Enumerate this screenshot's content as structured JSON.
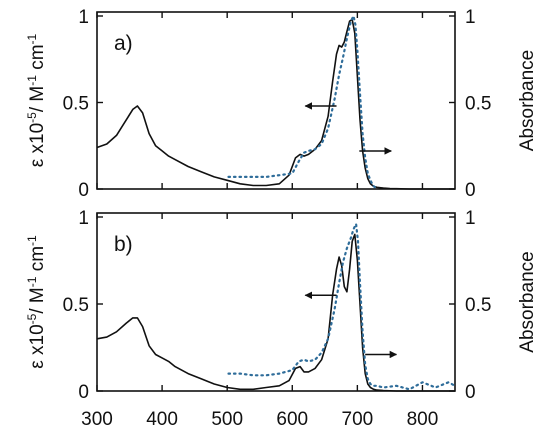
{
  "chart_data": [
    {
      "type": "line",
      "panel_label": "a)",
      "xlim": [
        300,
        850
      ],
      "left_ylim": [
        0,
        1.0
      ],
      "right_ylim": [
        0,
        1.0
      ],
      "left_ylabel": "ε x10-5/ M-1 cm-1",
      "left_ylabel_parts": {
        "base": "ε x10",
        "sup1": "-5",
        "mid": "/ M",
        "sup2": "-1",
        "end": " cm",
        "sup3": "-1"
      },
      "right_ylabel": "Absorbance",
      "left_yticks": [
        "0",
        "0.5",
        "1"
      ],
      "right_yticks": [
        "0",
        "0.5",
        "1"
      ],
      "grid": false,
      "arrows": [
        {
          "direction": "left",
          "from_x": 668,
          "to_x": 620,
          "y": 0.48,
          "axis": "left"
        },
        {
          "direction": "right",
          "from_x": 703,
          "to_x": 752,
          "y": 0.22,
          "axis": "right"
        }
      ],
      "series": [
        {
          "axis": "left",
          "style": "solid",
          "color": "#111111",
          "x": [
            300,
            315,
            330,
            345,
            355,
            362,
            370,
            380,
            390,
            400,
            410,
            420,
            440,
            460,
            480,
            500,
            520,
            540,
            560,
            580,
            595,
            605,
            612,
            618,
            625,
            635,
            645,
            655,
            662,
            668,
            672,
            676,
            680,
            684,
            688,
            692,
            696,
            700,
            704,
            708,
            712,
            716,
            720,
            725,
            730,
            740,
            750,
            760,
            780,
            800,
            820,
            850
          ],
          "y": [
            0.24,
            0.26,
            0.31,
            0.4,
            0.46,
            0.48,
            0.44,
            0.32,
            0.25,
            0.22,
            0.19,
            0.17,
            0.13,
            0.1,
            0.07,
            0.05,
            0.03,
            0.02,
            0.02,
            0.03,
            0.08,
            0.18,
            0.2,
            0.19,
            0.2,
            0.23,
            0.28,
            0.42,
            0.62,
            0.78,
            0.83,
            0.82,
            0.85,
            0.91,
            0.97,
            0.98,
            0.9,
            0.65,
            0.4,
            0.22,
            0.12,
            0.06,
            0.03,
            0.015,
            0.01,
            0.005,
            0.003,
            0.002,
            0.0,
            0.0,
            0.0,
            0.0
          ]
        },
        {
          "axis": "right",
          "style": "dotted",
          "color": "#2f6d9a",
          "x": [
            502,
            520,
            540,
            560,
            580,
            600,
            610,
            618,
            625,
            635,
            645,
            655,
            665,
            672,
            678,
            684,
            690,
            694,
            697,
            700,
            704,
            708,
            712,
            716,
            720,
            724,
            730
          ],
          "y": [
            0.07,
            0.07,
            0.07,
            0.07,
            0.08,
            0.09,
            0.16,
            0.21,
            0.22,
            0.23,
            0.26,
            0.35,
            0.52,
            0.66,
            0.76,
            0.87,
            0.97,
            1.0,
            0.95,
            0.8,
            0.55,
            0.32,
            0.18,
            0.09,
            0.05,
            0.02,
            0.0
          ]
        }
      ]
    },
    {
      "type": "line",
      "panel_label": "b)",
      "xlim": [
        300,
        850
      ],
      "left_ylim": [
        0,
        1.0
      ],
      "right_ylim": [
        0,
        1.0
      ],
      "left_ylabel": "ε x10-5/ M-1 cm-1",
      "left_ylabel_parts": {
        "base": "ε x10",
        "sup1": "-5",
        "mid": "/ M",
        "sup2": "-1",
        "end": " cm",
        "sup3": "-1"
      },
      "right_ylabel": "Absorbance",
      "left_yticks": [
        "0",
        "0.5",
        "1"
      ],
      "right_yticks": [
        "0",
        "0.5",
        "1"
      ],
      "xticks": [
        "300",
        "400",
        "500",
        "600",
        "700",
        "800"
      ],
      "xtick_values": [
        300,
        400,
        500,
        600,
        700,
        800
      ],
      "grid": false,
      "arrows": [
        {
          "direction": "left",
          "from_x": 668,
          "to_x": 620,
          "y": 0.55,
          "axis": "left"
        },
        {
          "direction": "right",
          "from_x": 712,
          "to_x": 760,
          "y": 0.21,
          "axis": "right"
        }
      ],
      "series": [
        {
          "axis": "left",
          "style": "solid",
          "color": "#111111",
          "x": [
            300,
            315,
            330,
            345,
            355,
            362,
            370,
            380,
            390,
            400,
            410,
            420,
            440,
            460,
            480,
            500,
            520,
            540,
            560,
            580,
            595,
            605,
            612,
            618,
            625,
            635,
            645,
            655,
            662,
            668,
            672,
            676,
            680,
            684,
            688,
            692,
            696,
            700,
            704,
            708,
            712,
            716,
            720,
            725,
            730,
            740,
            760,
            780,
            800,
            820,
            850
          ],
          "y": [
            0.3,
            0.31,
            0.34,
            0.39,
            0.42,
            0.42,
            0.37,
            0.26,
            0.21,
            0.19,
            0.17,
            0.14,
            0.1,
            0.07,
            0.04,
            0.02,
            0.01,
            0.01,
            0.02,
            0.03,
            0.06,
            0.13,
            0.14,
            0.11,
            0.11,
            0.13,
            0.18,
            0.3,
            0.55,
            0.7,
            0.77,
            0.72,
            0.6,
            0.57,
            0.7,
            0.86,
            0.9,
            0.75,
            0.5,
            0.25,
            0.1,
            0.04,
            0.02,
            0.01,
            0.005,
            0.003,
            0.0,
            0.0,
            0.0,
            0.0,
            0.0
          ]
        },
        {
          "axis": "right",
          "style": "dotted",
          "color": "#2f6d9a",
          "x": [
            502,
            520,
            540,
            560,
            580,
            600,
            610,
            618,
            625,
            635,
            645,
            655,
            665,
            672,
            678,
            684,
            690,
            694,
            698,
            701,
            704,
            708,
            712,
            716,
            720,
            724,
            730,
            740,
            760,
            780,
            800,
            820,
            840,
            850
          ],
          "y": [
            0.1,
            0.1,
            0.09,
            0.09,
            0.1,
            0.12,
            0.17,
            0.18,
            0.17,
            0.18,
            0.22,
            0.3,
            0.47,
            0.62,
            0.74,
            0.82,
            0.88,
            0.93,
            0.96,
            0.86,
            0.62,
            0.34,
            0.15,
            0.07,
            0.04,
            0.03,
            0.03,
            0.02,
            0.03,
            0.01,
            0.05,
            0.02,
            0.05,
            0.03
          ]
        }
      ]
    }
  ]
}
